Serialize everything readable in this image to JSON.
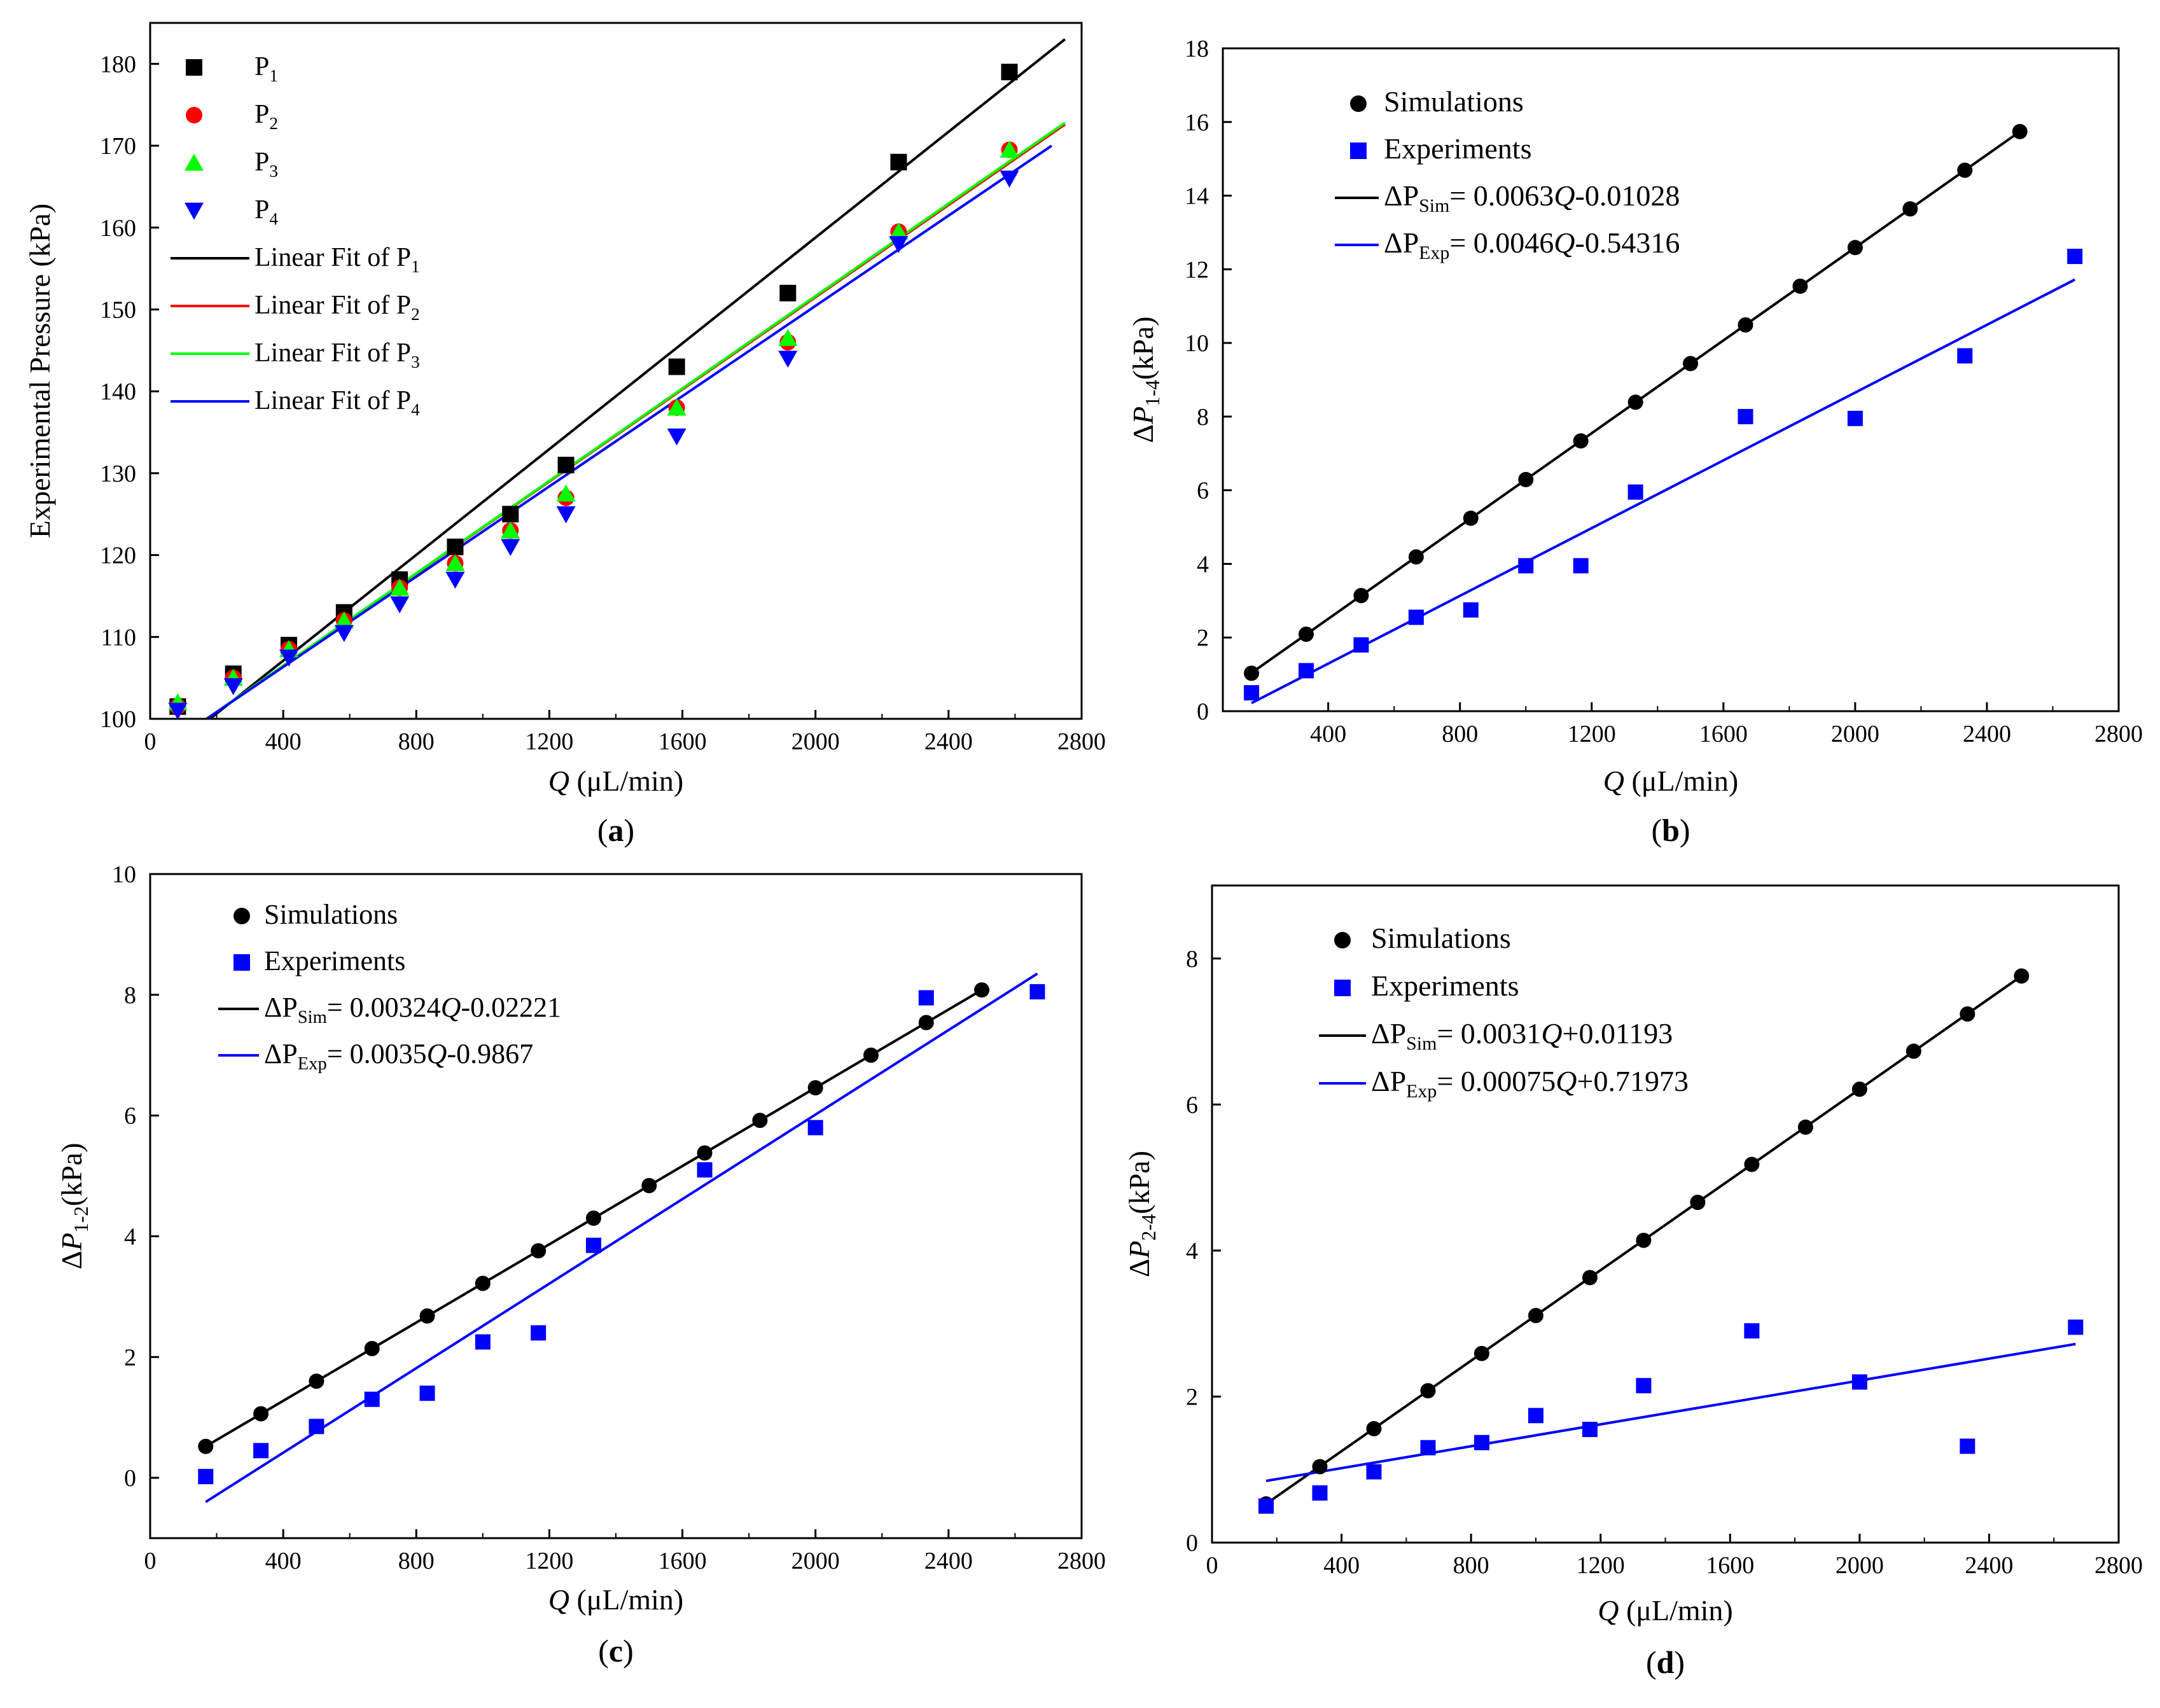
{
  "colors": {
    "black": "#000000",
    "red": "#ff0000",
    "green": "#00ff00",
    "blue": "#0000ff"
  },
  "chart_data": [
    {
      "panel": "(a)",
      "type": "scatter",
      "xlabel_var": "Q",
      "xlabel_unit": " (μL/min)",
      "ylabel": "Experimental Pressure (kPa)",
      "xlim": [
        0,
        2800
      ],
      "ylim": [
        100,
        185
      ],
      "xticks": [
        0,
        400,
        800,
        1200,
        1600,
        2000,
        2400,
        2800
      ],
      "yticks": [
        100,
        110,
        120,
        130,
        140,
        150,
        160,
        170,
        180
      ],
      "legend_position": "top-left",
      "series": [
        {
          "name": "P",
          "sub": "1",
          "marker": "square",
          "color": "#000000",
          "x": [
            83,
            250,
            417,
            583,
            750,
            917,
            1083,
            1250,
            1583,
            1917,
            2250,
            2583
          ],
          "y": [
            101.5,
            105.5,
            109,
            113,
            117,
            121,
            125,
            131,
            143,
            152,
            168,
            179
          ]
        },
        {
          "name": "P",
          "sub": "2",
          "marker": "circle",
          "color": "#ff0000",
          "x": [
            83,
            250,
            417,
            583,
            750,
            917,
            1083,
            1250,
            1583,
            1917,
            2250,
            2583
          ],
          "y": [
            101.5,
            105,
            108.5,
            112,
            116,
            119,
            123,
            127,
            138,
            146,
            159.5,
            169.5
          ]
        },
        {
          "name": "P",
          "sub": "3",
          "marker": "triangle-up",
          "color": "#00ff00",
          "x": [
            83,
            250,
            417,
            583,
            750,
            917,
            1083,
            1250,
            1583,
            1917,
            2250,
            2583
          ],
          "y": [
            102,
            105,
            108.5,
            112,
            116,
            119,
            123,
            127.5,
            138,
            146.5,
            159.5,
            169.5
          ]
        },
        {
          "name": "P",
          "sub": "4",
          "marker": "triangle-down",
          "color": "#0000ff",
          "x": [
            83,
            250,
            417,
            583,
            750,
            917,
            1083,
            1250,
            1583,
            1917,
            2250,
            2583
          ],
          "y": [
            101,
            104,
            107.5,
            110.5,
            114,
            117,
            121,
            125,
            134.5,
            144,
            158,
            166
          ]
        }
      ],
      "fits": [
        {
          "name": "Linear Fit of P",
          "sub": "1",
          "color": "#000000",
          "x": [
            180,
            2750
          ],
          "y": [
            100,
            183
          ]
        },
        {
          "name": "Linear Fit of P",
          "sub": "2",
          "color": "#ff0000",
          "x": [
            170,
            2750
          ],
          "y": [
            100,
            172.6
          ]
        },
        {
          "name": "Linear Fit of P",
          "sub": "3",
          "color": "#00ff00",
          "x": [
            170,
            2750
          ],
          "y": [
            100,
            172.8
          ]
        },
        {
          "name": "Linear Fit of P",
          "sub": "4",
          "color": "#0000ff",
          "x": [
            170,
            2710
          ],
          "y": [
            100,
            170
          ]
        }
      ]
    },
    {
      "panel": "(b)",
      "type": "scatter",
      "xlabel_var": "Q",
      "xlabel_unit": " (μL/min)",
      "ylabel_pre": "Δ",
      "ylabel_var": "P",
      "ylabel_sub": "1-4",
      "ylabel_post": "(kPa)",
      "xlim": [
        80,
        2800
      ],
      "ylim": [
        0,
        18
      ],
      "xticks": [
        400,
        800,
        1200,
        1600,
        2000,
        2400,
        2800
      ],
      "yticks": [
        0,
        2,
        4,
        6,
        8,
        10,
        12,
        14,
        16,
        18
      ],
      "legend_position": "top-left",
      "series": [
        {
          "name": "Simulations",
          "marker": "circle",
          "color": "#000000",
          "x": [
            167,
            333,
            500,
            667,
            833,
            1000,
            1167,
            1333,
            1500,
            1667,
            1833,
            2000,
            2167,
            2333,
            2500
          ],
          "y": [
            1.03,
            2.09,
            3.14,
            4.19,
            5.24,
            6.29,
            7.34,
            8.39,
            9.44,
            10.49,
            11.54,
            12.59,
            13.64,
            14.69,
            15.74
          ]
        },
        {
          "name": "Experiments",
          "marker": "square",
          "color": "#0000ff",
          "x": [
            167,
            333,
            500,
            667,
            833,
            1000,
            1167,
            1333,
            1667,
            2000,
            2333,
            2667
          ],
          "y": [
            0.5,
            1.1,
            1.8,
            2.55,
            2.75,
            3.95,
            3.95,
            5.95,
            8.0,
            7.95,
            9.65,
            12.35
          ]
        }
      ],
      "fits": [
        {
          "label_pre": "ΔP",
          "label_sub": "Sim",
          "label_eq": "= 0.0063",
          "label_var": "Q",
          "label_tail": "-0.01028",
          "color": "#000000",
          "x": [
            167,
            2500
          ],
          "y": [
            1.04,
            15.74
          ]
        },
        {
          "label_pre": "ΔP",
          "label_sub": "Exp",
          "label_eq": "= 0.0046",
          "label_var": "Q",
          "label_tail": "-0.54316",
          "color": "#0000ff",
          "x": [
            167,
            2667
          ],
          "y": [
            0.22,
            11.72
          ]
        }
      ]
    },
    {
      "panel": "(c)",
      "type": "scatter",
      "xlabel_var": "Q",
      "xlabel_unit": " (μL/min)",
      "ylabel_pre": "Δ",
      "ylabel_var": "P",
      "ylabel_sub": "1-2",
      "ylabel_post": "(kPa)",
      "xlim": [
        0,
        2800
      ],
      "ylim": [
        -1,
        10
      ],
      "xticks": [
        0,
        400,
        800,
        1200,
        1600,
        2000,
        2400,
        2800
      ],
      "yticks": [
        0,
        2,
        4,
        6,
        8,
        10
      ],
      "legend_position": "top-left",
      "series": [
        {
          "name": "Simulations",
          "marker": "circle",
          "color": "#000000",
          "x": [
            167,
            333,
            500,
            667,
            833,
            1000,
            1167,
            1333,
            1500,
            1667,
            1833,
            2000,
            2167,
            2333,
            2500
          ],
          "y": [
            0.52,
            1.06,
            1.6,
            2.14,
            2.68,
            3.22,
            3.76,
            4.3,
            4.84,
            5.38,
            5.92,
            6.46,
            7.0,
            7.54,
            8.08
          ]
        },
        {
          "name": "Experiments",
          "marker": "square",
          "color": "#0000ff",
          "x": [
            167,
            333,
            500,
            667,
            833,
            1000,
            1167,
            1333,
            1667,
            2000,
            2333,
            2667
          ],
          "y": [
            0.02,
            0.45,
            0.85,
            1.3,
            1.4,
            2.25,
            2.4,
            3.85,
            5.1,
            5.8,
            7.95,
            8.05
          ]
        }
      ],
      "fits": [
        {
          "label_pre": "ΔP",
          "label_sub": "Sim",
          "label_eq": "= 0.00324",
          "label_var": "Q",
          "label_tail": "-0.02221",
          "color": "#000000",
          "x": [
            167,
            2500
          ],
          "y": [
            0.52,
            8.08
          ]
        },
        {
          "label_pre": "ΔP",
          "label_sub": "Exp",
          "label_eq": "= 0.0035",
          "label_var": "Q",
          "label_tail": "-0.9867",
          "color": "#0000ff",
          "x": [
            167,
            2667
          ],
          "y": [
            -0.4,
            8.35
          ]
        }
      ]
    },
    {
      "panel": "(d)",
      "type": "scatter",
      "xlabel_var": "Q",
      "xlabel_unit": " (μL/min)",
      "ylabel_pre": "Δ",
      "ylabel_var": "P",
      "ylabel_sub": "2-4",
      "ylabel_post": "(kPa)",
      "xlim": [
        0,
        2800
      ],
      "ylim": [
        0,
        9
      ],
      "xticks": [
        0,
        400,
        800,
        1200,
        1600,
        2000,
        2400,
        2800
      ],
      "yticks": [
        0,
        2,
        4,
        6,
        8
      ],
      "legend_position": "top-left",
      "series": [
        {
          "name": "Simulations",
          "marker": "circle",
          "color": "#000000",
          "x": [
            167,
            333,
            500,
            667,
            833,
            1000,
            1167,
            1333,
            1500,
            1667,
            1833,
            2000,
            2167,
            2333,
            2500
          ],
          "y": [
            0.53,
            1.04,
            1.56,
            2.08,
            2.59,
            3.11,
            3.63,
            4.14,
            4.66,
            5.18,
            5.69,
            6.21,
            6.73,
            7.24,
            7.76
          ]
        },
        {
          "name": "Experiments",
          "marker": "square",
          "color": "#0000ff",
          "x": [
            167,
            333,
            500,
            667,
            833,
            1000,
            1167,
            1333,
            1667,
            2000,
            2333,
            2667
          ],
          "y": [
            0.5,
            0.68,
            0.97,
            1.3,
            1.37,
            1.74,
            1.55,
            2.15,
            2.9,
            2.2,
            1.32,
            2.95
          ]
        }
      ],
      "fits": [
        {
          "label_pre": "ΔP",
          "label_sub": "Sim",
          "label_eq": "= 0.0031",
          "label_var": "Q",
          "label_tail": "+0.01193",
          "color": "#000000",
          "x": [
            167,
            2500
          ],
          "y": [
            0.53,
            7.76
          ]
        },
        {
          "label_pre": "ΔP",
          "label_sub": "Exp",
          "label_eq": "= 0.00075",
          "label_var": "Q",
          "label_tail": "+0.71973",
          "color": "#0000ff",
          "x": [
            167,
            2667
          ],
          "y": [
            0.845,
            2.72
          ]
        }
      ]
    }
  ]
}
